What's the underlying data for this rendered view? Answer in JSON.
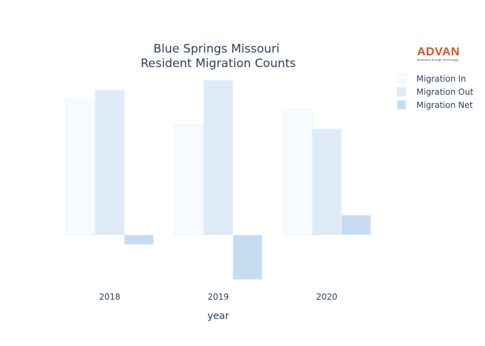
{
  "logo": {
    "brand": "ADVAN",
    "tagline": "Research through Technology"
  },
  "chart_data": {
    "type": "bar",
    "title": [
      "Blue Springs Missouri",
      "Resident Migration Counts"
    ],
    "xlabel": "year",
    "ylabel": "",
    "categories": [
      "2018",
      "2019",
      "2020"
    ],
    "series": [
      {
        "name": "Migration In",
        "values": [
          2670,
          2170,
          2480
        ]
      },
      {
        "name": "Migration Out",
        "values": [
          2860,
          3050,
          2090
        ]
      },
      {
        "name": "Migration Net",
        "values": [
          -190,
          -880,
          390
        ]
      }
    ],
    "ylim": [
      -880,
      3050
    ],
    "grid": false,
    "show_y_ticks": false,
    "legend_position": "top-right",
    "colors": {
      "Migration In": "#f7fbff",
      "Migration Out": "#deebf7",
      "Migration Net": "#c6dbef"
    },
    "bar_border_color": "#eef3fa"
  }
}
